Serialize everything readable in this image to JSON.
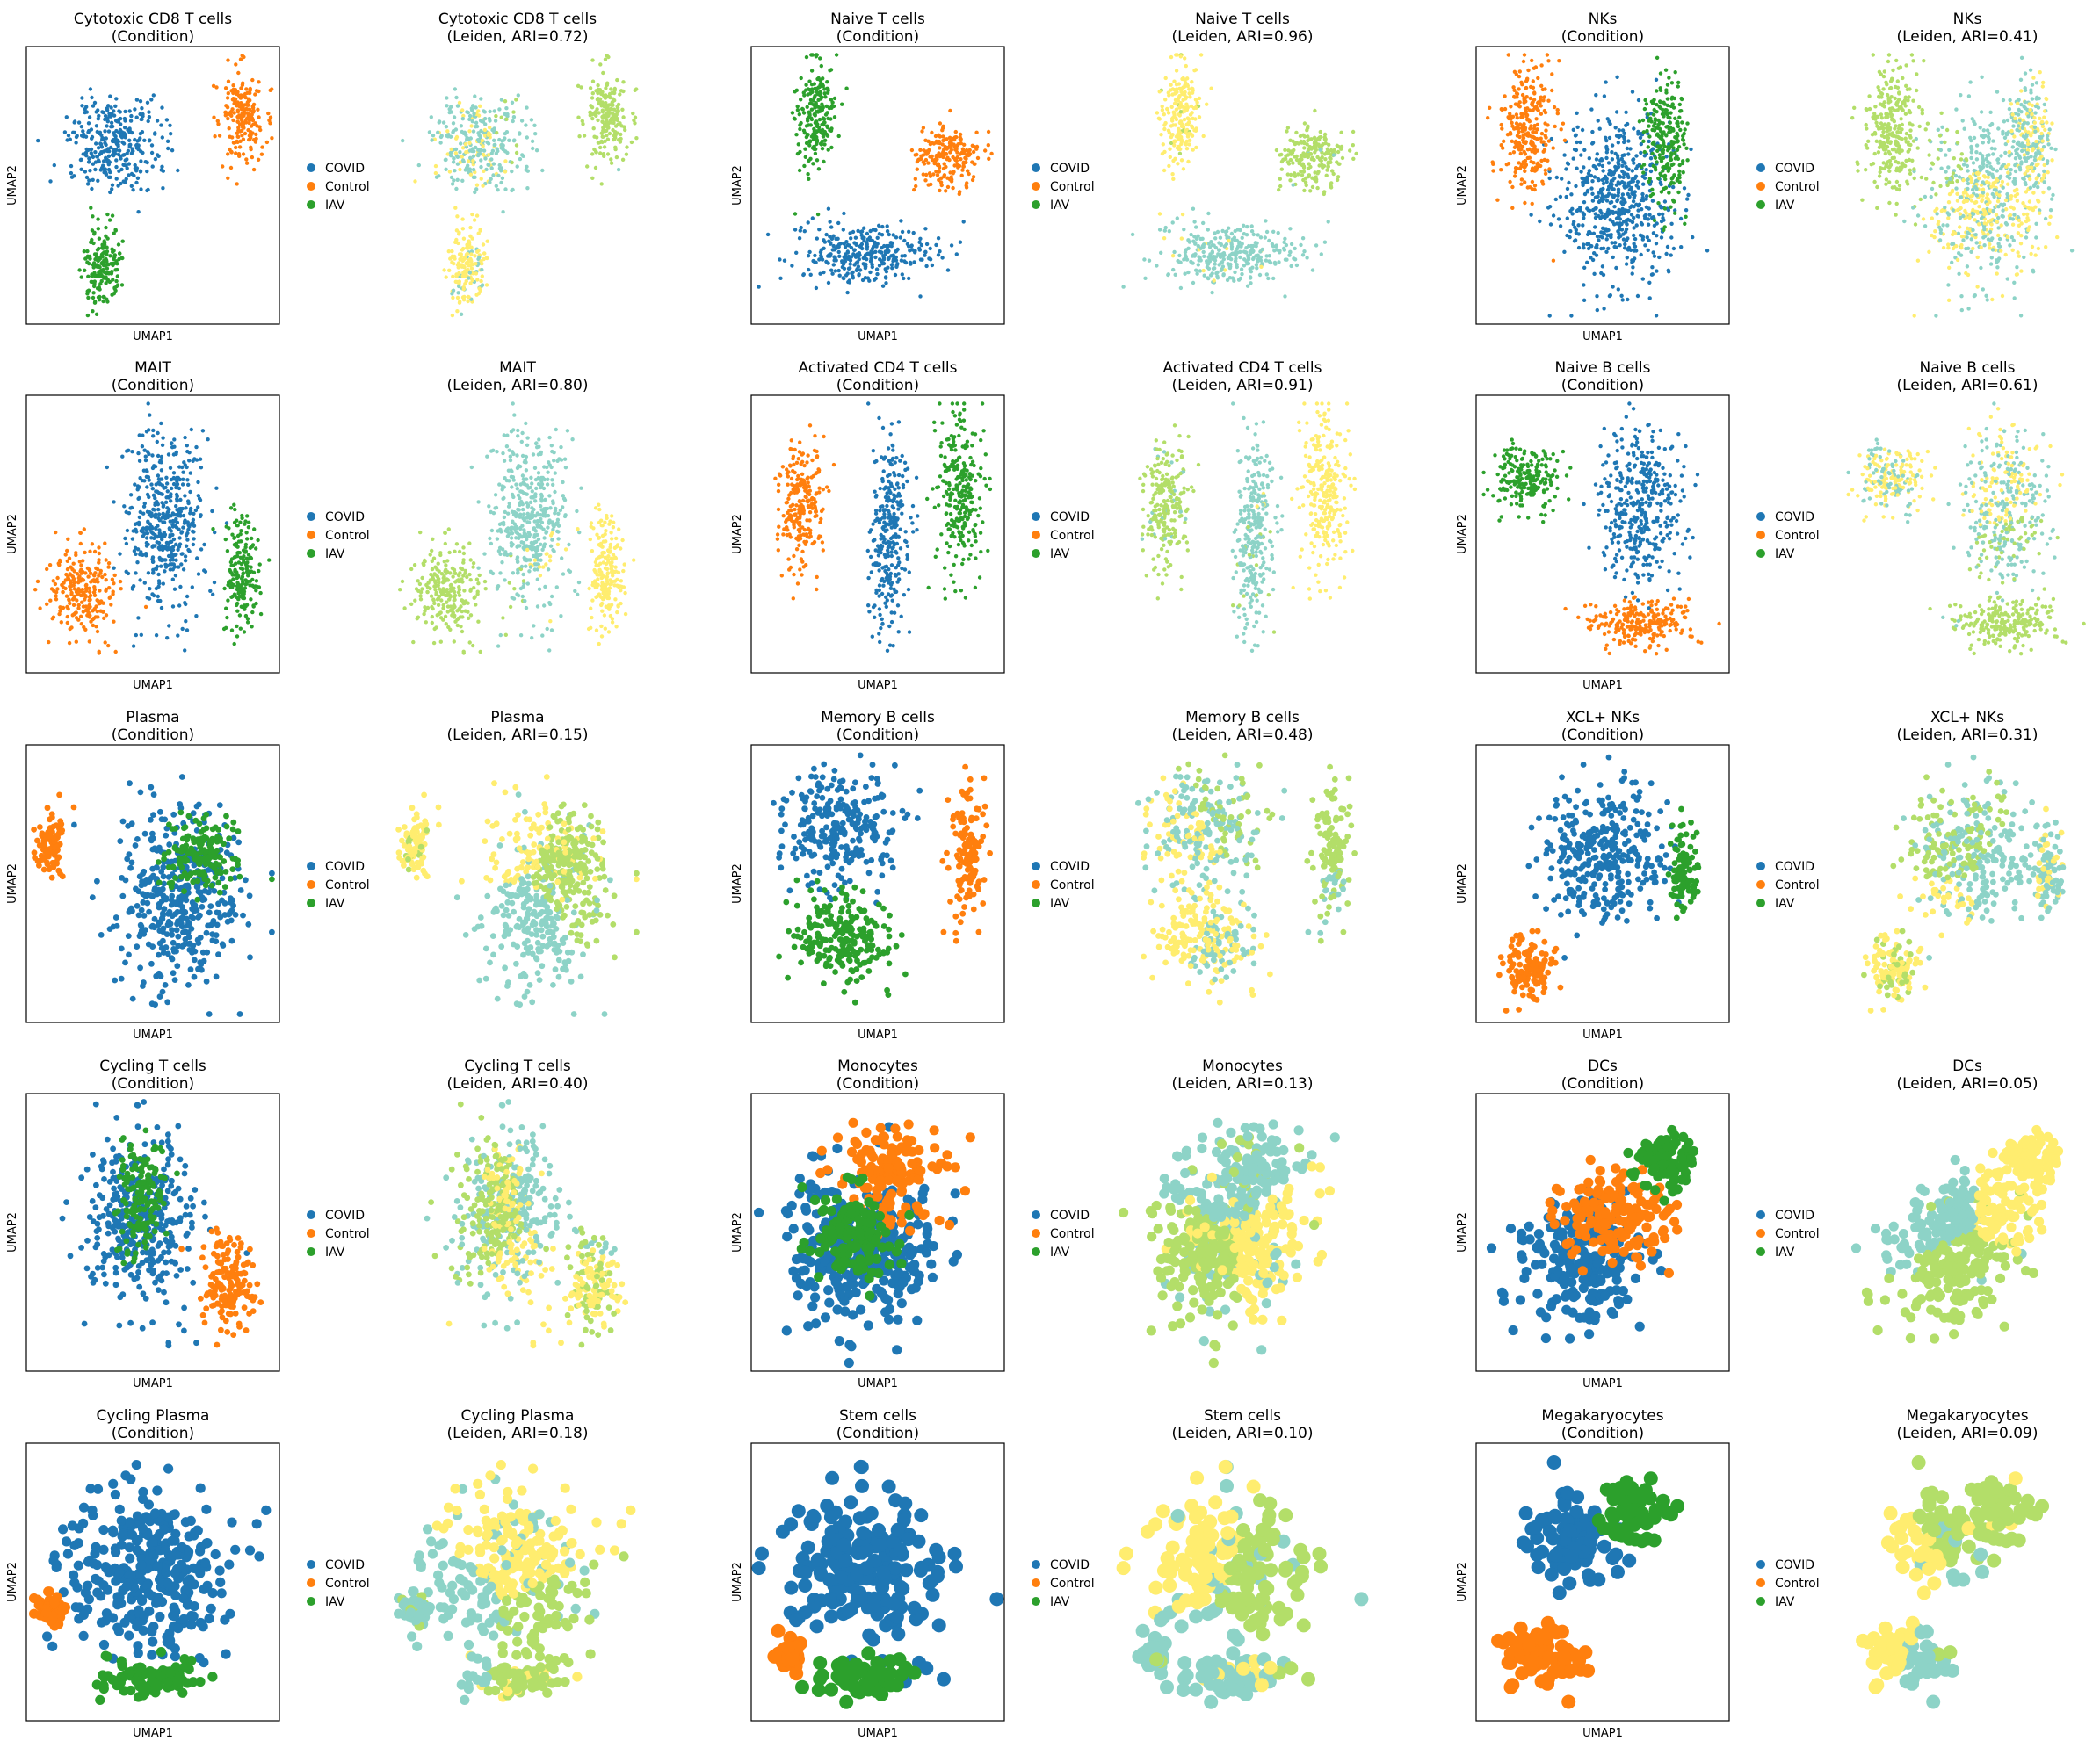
{
  "legend": {
    "labels": [
      "COVID",
      "Control",
      "IAV"
    ],
    "colors": [
      "#1f77b4",
      "#ff7f0e",
      "#2ca02c"
    ]
  },
  "leiden_colors": [
    "#8dd3c7",
    "#ffed6f",
    "#b3de69"
  ],
  "axes": {
    "xlabel": "UMAP1",
    "ylabel": "UMAP2",
    "ticks": "none"
  },
  "chart_data": [
    {
      "type": "scatter",
      "cell_type": "Cytotoxic CD8 T cells",
      "condition_title": "(Condition)",
      "leiden_title": "(Leiden, ARI=0.72)",
      "ari": 0.72,
      "density": "high"
    },
    {
      "type": "scatter",
      "cell_type": "Naive T cells",
      "condition_title": "(Condition)",
      "leiden_title": "(Leiden, ARI=0.96)",
      "ari": 0.96,
      "density": "high"
    },
    {
      "type": "scatter",
      "cell_type": "NKs",
      "condition_title": "(Condition)",
      "leiden_title": "(Leiden, ARI=0.41)",
      "ari": 0.41,
      "density": "high"
    },
    {
      "type": "scatter",
      "cell_type": "MAIT",
      "condition_title": "(Condition)",
      "leiden_title": "(Leiden, ARI=0.80)",
      "ari": 0.8,
      "density": "high"
    },
    {
      "type": "scatter",
      "cell_type": "Activated CD4 T cells",
      "condition_title": "(Condition)",
      "leiden_title": "(Leiden, ARI=0.91)",
      "ari": 0.91,
      "density": "high"
    },
    {
      "type": "scatter",
      "cell_type": "Naive B cells",
      "condition_title": "(Condition)",
      "leiden_title": "(Leiden, ARI=0.61)",
      "ari": 0.61,
      "density": "high"
    },
    {
      "type": "scatter",
      "cell_type": "Plasma",
      "condition_title": "(Condition)",
      "leiden_title": "(Leiden, ARI=0.15)",
      "ari": 0.15,
      "density": "medium"
    },
    {
      "type": "scatter",
      "cell_type": "Memory B cells",
      "condition_title": "(Condition)",
      "leiden_title": "(Leiden, ARI=0.48)",
      "ari": 0.48,
      "density": "medium"
    },
    {
      "type": "scatter",
      "cell_type": "XCL+ NKs",
      "condition_title": "(Condition)",
      "leiden_title": "(Leiden, ARI=0.31)",
      "ari": 0.31,
      "density": "medium"
    },
    {
      "type": "scatter",
      "cell_type": "Cycling T cells",
      "condition_title": "(Condition)",
      "leiden_title": "(Leiden, ARI=0.40)",
      "ari": 0.4,
      "density": "medium"
    },
    {
      "type": "scatter",
      "cell_type": "Monocytes",
      "condition_title": "(Condition)",
      "leiden_title": "(Leiden, ARI=0.13)",
      "ari": 0.13,
      "density": "low"
    },
    {
      "type": "scatter",
      "cell_type": "DCs",
      "condition_title": "(Condition)",
      "leiden_title": "(Leiden, ARI=0.05)",
      "ari": 0.05,
      "density": "low"
    },
    {
      "type": "scatter",
      "cell_type": "Cycling Plasma",
      "condition_title": "(Condition)",
      "leiden_title": "(Leiden, ARI=0.18)",
      "ari": 0.18,
      "density": "low"
    },
    {
      "type": "scatter",
      "cell_type": "Stem cells",
      "condition_title": "(Condition)",
      "leiden_title": "(Leiden, ARI=0.10)",
      "ari": 0.1,
      "density": "very-low"
    },
    {
      "type": "scatter",
      "cell_type": "Megakaryocytes",
      "condition_title": "(Condition)",
      "leiden_title": "(Leiden, ARI=0.09)",
      "ari": 0.09,
      "density": "very-low"
    }
  ]
}
